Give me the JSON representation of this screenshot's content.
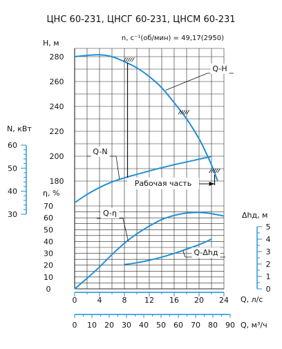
{
  "chart_data": {
    "type": "line",
    "title": "ЦНС 60-231, ЦНСГ 60-231, ЦНСМ 60-231",
    "speed_label": "n, с⁻¹(об/мин) = 49,17(2950)",
    "colors": {
      "curve": "#1f8fd6",
      "grid": "#222222",
      "axis_blue": "#1f8fd6"
    },
    "axes": {
      "q_ls": {
        "label": "Q, л/с",
        "ticks": [
          "0",
          "4",
          "8",
          "12",
          "16",
          "20",
          "24"
        ],
        "range": [
          0,
          26
        ]
      },
      "q_m3h": {
        "label": "Q, м³/ч",
        "ticks": [
          "0",
          "10",
          "20",
          "30",
          "40",
          "50",
          "60",
          "70",
          "80",
          "90"
        ],
        "range": [
          0,
          93.6
        ]
      },
      "head": {
        "label": "H, м",
        "ticks": [
          "180",
          "200",
          "220",
          "240",
          "260",
          "280"
        ],
        "range": [
          170,
          285
        ]
      },
      "power": {
        "label": "N, кВт",
        "ticks": [
          "30",
          "40",
          "50",
          "60"
        ],
        "range": [
          30,
          60
        ]
      },
      "eff": {
        "label": "η, %",
        "ticks": [
          "0",
          "10",
          "20",
          "30",
          "40",
          "50",
          "60",
          "70"
        ],
        "range": [
          0,
          70
        ]
      },
      "npsh": {
        "label": "Δhд, м",
        "ticks": [
          "0",
          "1",
          "2",
          "3",
          "4",
          "5"
        ],
        "range": [
          0,
          5
        ]
      }
    },
    "working_range": {
      "label": "Рабочая часть",
      "q_min": 8.5,
      "q_max": 22.5
    },
    "series": [
      {
        "name": "Q-H",
        "axis": "head",
        "x": [
          0,
          2,
          4,
          6,
          8,
          10,
          12,
          14,
          16,
          18,
          20,
          21,
          22,
          23
        ],
        "y": [
          280,
          281,
          281.5,
          280,
          276,
          271,
          264,
          255,
          243,
          230,
          214,
          204,
          193,
          180
        ]
      },
      {
        "name": "Q-N",
        "axis": "power",
        "x": [
          0,
          2,
          4,
          6,
          8,
          10,
          12,
          14,
          16,
          18,
          20,
          22
        ],
        "y": [
          35,
          38.6,
          41.6,
          44,
          45.8,
          47.3,
          48.8,
          50.2,
          51.5,
          52.7,
          53.9,
          55.1
        ]
      },
      {
        "name": "Q-η",
        "axis": "eff",
        "x": [
          0,
          2,
          4,
          6,
          8,
          10,
          12,
          14,
          16,
          18,
          20,
          22,
          24
        ],
        "y": [
          0,
          9,
          18.5,
          29,
          38.5,
          46.5,
          53,
          58.5,
          62,
          64,
          64.5,
          63.5,
          61.5
        ]
      },
      {
        "name": "Q-Δhд",
        "axis": "npsh",
        "x": [
          8,
          10,
          12,
          14,
          16,
          18,
          20,
          22
        ],
        "y": [
          1.95,
          2.1,
          2.3,
          2.55,
          2.85,
          3.2,
          3.55,
          4.0
        ]
      }
    ]
  }
}
